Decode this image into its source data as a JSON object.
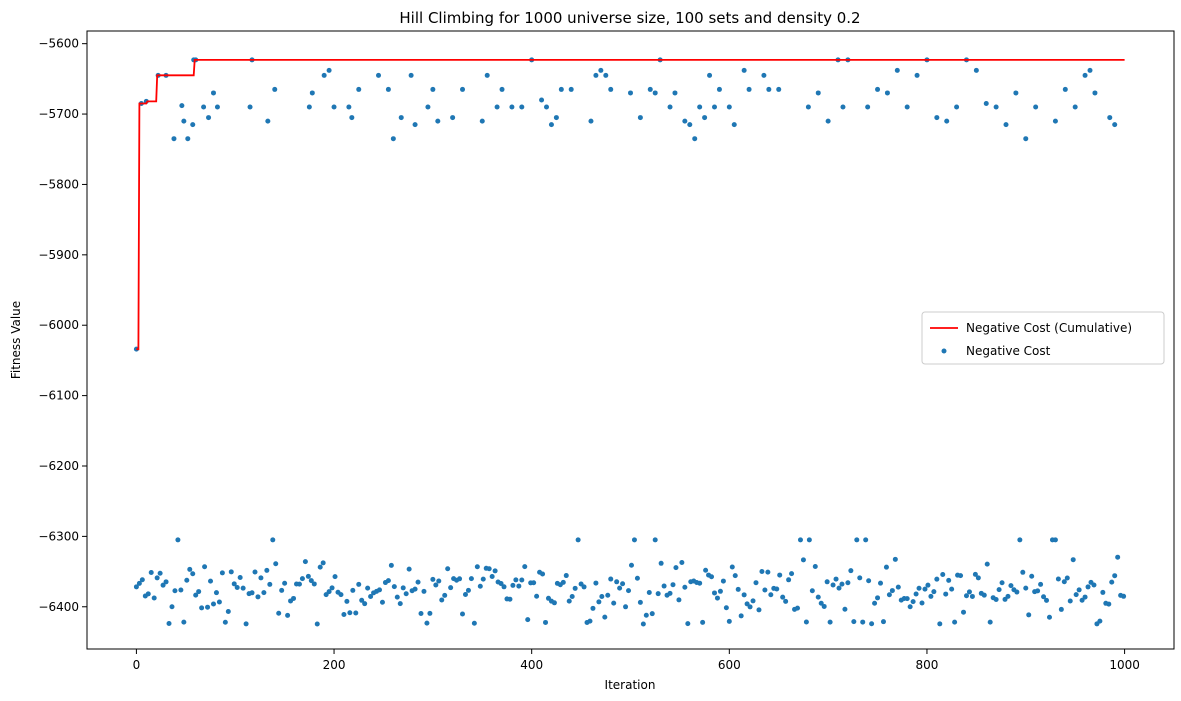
{
  "chart_data": {
    "type": "scatter",
    "title": "Hill Climbing for 1000 universe size, 100 sets and density 0.2",
    "xlabel": "Iteration",
    "ylabel": "Fitness Value",
    "xlim": [
      -50,
      1050
    ],
    "ylim": [
      -6460,
      -5582
    ],
    "xticks": [
      0,
      200,
      400,
      600,
      800,
      1000
    ],
    "yticks": [
      -6400,
      -6300,
      -6200,
      -6100,
      -6000,
      -5900,
      -5800,
      -5700,
      -5600
    ],
    "xtick_labels": [
      "0",
      "200",
      "400",
      "600",
      "800",
      "1000"
    ],
    "ytick_labels": [
      "−6400",
      "−6300",
      "−6200",
      "−6100",
      "−6000",
      "−5900",
      "−5800",
      "−5700",
      "−5600"
    ],
    "grid": false,
    "legend_position": "center-right",
    "series": [
      {
        "name": "Negative Cost (Cumulative)",
        "kind": "step-line",
        "color": "#ff0000",
        "x": [
          0,
          2,
          3,
          10,
          11,
          20,
          21,
          58,
          59,
          1000
        ],
        "y": [
          -6034,
          -6034,
          -5685,
          -5685,
          -5682,
          -5682,
          -5645,
          -5645,
          -5623,
          -5623
        ]
      },
      {
        "name": "Negative Cost",
        "kind": "scatter",
        "color": "#1f77b4",
        "cluster_upper": {
          "x": [
            0,
            5,
            10,
            22,
            30,
            38,
            46,
            48,
            52,
            57,
            58,
            60,
            68,
            73,
            78,
            82,
            115,
            117,
            133,
            140,
            175,
            178,
            190,
            195,
            200,
            215,
            218,
            225,
            245,
            255,
            260,
            268,
            278,
            282,
            295,
            300,
            305,
            320,
            330,
            350,
            355,
            365,
            370,
            380,
            390,
            400,
            410,
            415,
            420,
            425,
            430,
            440,
            460,
            465,
            470,
            475,
            480,
            500,
            510,
            520,
            525,
            530,
            540,
            545,
            555,
            560,
            565,
            570,
            575,
            580,
            585,
            590,
            600,
            605,
            615,
            620,
            635,
            640,
            650,
            680,
            690,
            700,
            710,
            715,
            720,
            740,
            750,
            760,
            770,
            780,
            790,
            800,
            810,
            820,
            830,
            840,
            850,
            860,
            870,
            880,
            890,
            900,
            910,
            930,
            940,
            950,
            960,
            965,
            970,
            985,
            990
          ],
          "y": [
            -6034,
            -5685,
            -5682,
            -5645,
            -5645,
            -5735,
            -5688,
            -5710,
            -5735,
            -5715,
            -5623,
            -5623,
            -5690,
            -5705,
            -5670,
            -5690,
            -5690,
            -5623,
            -5710,
            -5665,
            -5690,
            -5670,
            -5645,
            -5638,
            -5690,
            -5690,
            -5705,
            -5665,
            -5645,
            -5665,
            -5735,
            -5705,
            -5645,
            -5715,
            -5690,
            -5665,
            -5710,
            -5705,
            -5665,
            -5710,
            -5645,
            -5690,
            -5665,
            -5690,
            -5690,
            -5623,
            -5680,
            -5690,
            -5715,
            -5705,
            -5665,
            -5665,
            -5710,
            -5645,
            -5638,
            -5645,
            -5665,
            -5670,
            -5705,
            -5665,
            -5670,
            -5623,
            -5690,
            -5670,
            -5710,
            -5715,
            -5735,
            -5690,
            -5705,
            -5645,
            -5690,
            -5665,
            -5690,
            -5715,
            -5638,
            -5665,
            -5645,
            -5665,
            -5665,
            -5690,
            -5670,
            -5710,
            -5623,
            -5690,
            -5623,
            -5690,
            -5665,
            -5670,
            -5638,
            -5690,
            -5645,
            -5623,
            -5705,
            -5710,
            -5690,
            -5623,
            -5638,
            -5685,
            -5690,
            -5715,
            -5670,
            -5735,
            -5690,
            -5710,
            -5665,
            -5690,
            -5645,
            -5638,
            -5670,
            -5705,
            -5715
          ]
        },
        "cluster_lower": {
          "x_step": 3,
          "x_start": 0,
          "x_end": 999,
          "y_center": -6375,
          "y_spread": 30,
          "y_min": -6425,
          "y_max": -6305
        }
      }
    ]
  }
}
